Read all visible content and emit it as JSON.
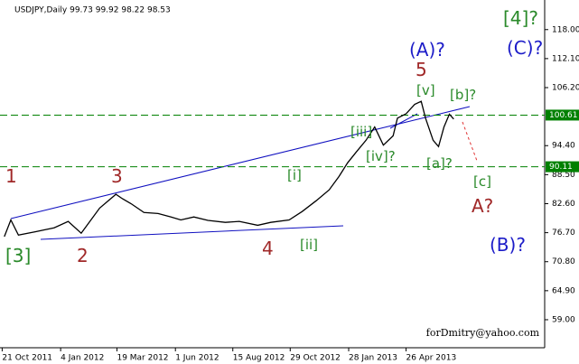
{
  "chart_data": {
    "type": "line",
    "title": "USDJPY,Daily  99.73 99.92 98.22 98.53",
    "footer": "forDmitry@yahoo.com",
    "x": [
      4,
      10,
      17,
      33,
      50,
      63,
      75,
      83,
      92,
      100,
      107,
      113,
      121,
      133,
      146,
      158,
      167,
      179,
      192,
      208,
      221,
      238,
      250,
      267,
      279,
      292,
      304,
      313,
      321,
      329,
      338,
      346,
      354,
      363,
      367,
      375,
      383,
      389,
      393,
      400,
      405,
      410,
      415,
      419
    ],
    "series": [
      {
        "name": "USDJPY",
        "color": "#000000",
        "values": [
          75.9,
          79.3,
          76.2,
          76.9,
          77.7,
          79.0,
          76.6,
          79.0,
          81.7,
          83.2,
          84.5,
          83.6,
          82.6,
          80.8,
          80.6,
          79.9,
          79.3,
          79.9,
          79.2,
          78.8,
          79.0,
          78.2,
          78.8,
          79.3,
          81.0,
          83.2,
          85.4,
          88.1,
          90.9,
          93.1,
          95.5,
          98.2,
          94.5,
          96.4,
          100.0,
          100.9,
          102.8,
          103.4,
          100.0,
          95.5,
          94.2,
          98.2,
          100.8,
          99.8
        ]
      }
    ],
    "levels": [
      100.61,
      90.11
    ],
    "level_color": "#008000",
    "xlim": [
      0,
      503
    ],
    "xticks": [
      {
        "value": 2,
        "label": "21 Oct 2011"
      },
      {
        "value": 56,
        "label": "4 Jan 2012"
      },
      {
        "value": 108,
        "label": "19 Mar 2012"
      },
      {
        "value": 162,
        "label": "1 Jun 2012"
      },
      {
        "value": 215,
        "label": "15 Aug 2012"
      },
      {
        "value": 268,
        "label": "29 Oct 2012"
      },
      {
        "value": 322,
        "label": "28 Jan 2013"
      },
      {
        "value": 375,
        "label": "26 Apr 2013"
      }
    ],
    "ylim": [
      53.3,
      123.1
    ],
    "yticks": [
      {
        "value": 59,
        "label": "59.00"
      },
      {
        "value": 64.9,
        "label": "64.90"
      },
      {
        "value": 70.8,
        "label": "70.80"
      },
      {
        "value": 76.7,
        "label": "76.70"
      },
      {
        "value": 82.6,
        "label": "82.60"
      },
      {
        "value": 88.5,
        "label": "88.50"
      },
      {
        "value": 94.4,
        "label": "94.40"
      },
      {
        "value": 106.2,
        "label": "106.20"
      },
      {
        "value": 112.1,
        "label": "112.10"
      },
      {
        "value": 118,
        "label": "118.00"
      }
    ],
    "annotations": [
      "1",
      "[3]",
      "3",
      "2",
      "4",
      "[i]",
      "[ii]",
      "[iii]",
      "[iv]?",
      "5",
      "(A)?",
      "[v]",
      "[b]?",
      "[a]?",
      "[c]",
      "A?",
      "(B)?",
      "[4]?",
      "(C)?"
    ]
  }
}
